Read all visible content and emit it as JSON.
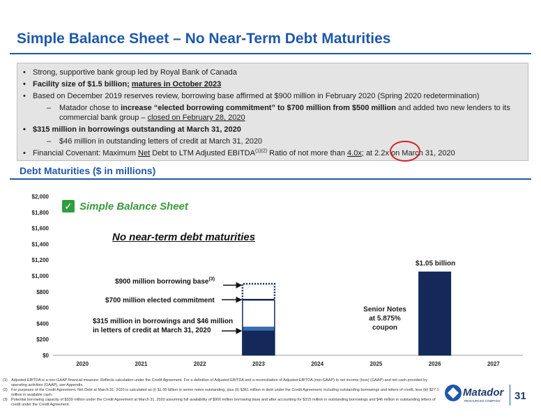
{
  "title": "Simple Balance Sheet – No Near-Term Debt Maturities",
  "bullets": {
    "b1": "Strong, supportive bank group led by Royal Bank of Canada",
    "b2_a": "Facility size of $1.5 billion; ",
    "b2_b": "matures in October 2023",
    "b3": "Based on December 2019 reserves review, borrowing base affirmed at $900 million in February 2020 (Spring 2020 redetermination)",
    "s1_a": "Matador chose to ",
    "s1_b": "increase “elected borrowing commitment” to $700 million from $500 million",
    "s1_c": " and added two new lenders to its commercial bank group – ",
    "s1_d": "closed on February 28, 2020",
    "b4": "$315 million in borrowings outstanding at March 31, 2020",
    "s2": "$46 million in outstanding letters of credit at March 31, 2020",
    "b5_a": "Financial Covenant: Maximum ",
    "b5_b": "Net",
    "b5_c": " Debt to LTM Adjusted EBITDA",
    "b5_sup": "(1)(2)",
    "b5_d": " Ratio of not more than ",
    "b5_e": "4.0x",
    "b5_f": "; at 2.2x on March 31, 2020"
  },
  "section_title": "Debt Maturities ($ in millions)",
  "callouts": {
    "check_label": "Simple Balance Sheet",
    "no_debt": "No near-term debt maturities",
    "borrowing_base": "$900 million borrowing base",
    "borrowing_base_sup": "(3)",
    "elected": "$700 million elected commitment",
    "borrowings_1": "$315 million in borrowings and $46 million",
    "borrowings_2": "in letters of credit at March 31, 2020",
    "senior_1": "Senior Notes",
    "senior_2": "at 5.875%",
    "senior_3": "coupon",
    "total_2026": "$1.05 billion"
  },
  "chart_data": {
    "type": "bar",
    "categories": [
      "2020",
      "2021",
      "2022",
      "2023",
      "2024",
      "2025",
      "2026",
      "2027"
    ],
    "yticks": [
      "$0",
      "$200",
      "$400",
      "$600",
      "$800",
      "$1,000",
      "$1,200",
      "$1,400",
      "$1,600",
      "$1,800",
      "$2,000"
    ],
    "ylim": [
      0,
      2000
    ],
    "stacks": [
      {
        "category": "2023",
        "segments": [
          {
            "label": "borrowings",
            "value": 315,
            "color": "#14285a"
          },
          {
            "label": "letters of credit",
            "value": 46,
            "color": "#3b6fb0"
          },
          {
            "label": "undrawn elected commitment",
            "value": 339,
            "color": "#ffffff"
          }
        ],
        "elected_commitment": 700,
        "borrowing_base": 900
      },
      {
        "category": "2026",
        "segments": [
          {
            "label": "senior notes",
            "value": 1050,
            "color": "#14285a"
          }
        ]
      }
    ]
  },
  "footnotes": [
    {
      "n": "(1)",
      "text": "Adjusted EBITDA is a non-GAAP financial measure. Reflects calculation under the Credit Agreement. For a definition of Adjusted EBITDA and a reconciliation of Adjusted EBITDA (non-GAAP) to net income (loss) (GAAP) and net cash provided by operating activities (GAAP), see Appendix."
    },
    {
      "n": "(2)",
      "text": "For purposes of the Credit Agreement, Net Debt at March 31, 2020 is calculated as (i) $1.05 billion in senior notes outstanding, plus (ii) $361 million in debt under the Credit Agreement, including outstanding borrowings and letters of credit, less (iii) $27.1 million in available cash."
    },
    {
      "n": "(3)",
      "text": "Potential borrowing capacity of $539 million under the Credit Agreement at March 31, 2020 assuming full availability of $900 million borrowing base and after accounting for $315 million in outstanding borrowings and $46 million in outstanding letters of credit under the Credit Agreement."
    }
  ],
  "logo": "Matador",
  "logo_sub": "RESOURCES COMPANY",
  "page_number": "31",
  "colors": {
    "brand_blue": "#1f58a8",
    "navy": "#14285a",
    "mid_blue": "#3b6fb0",
    "accent_red": "#d81f26",
    "check_green": "#2e9e3e"
  }
}
